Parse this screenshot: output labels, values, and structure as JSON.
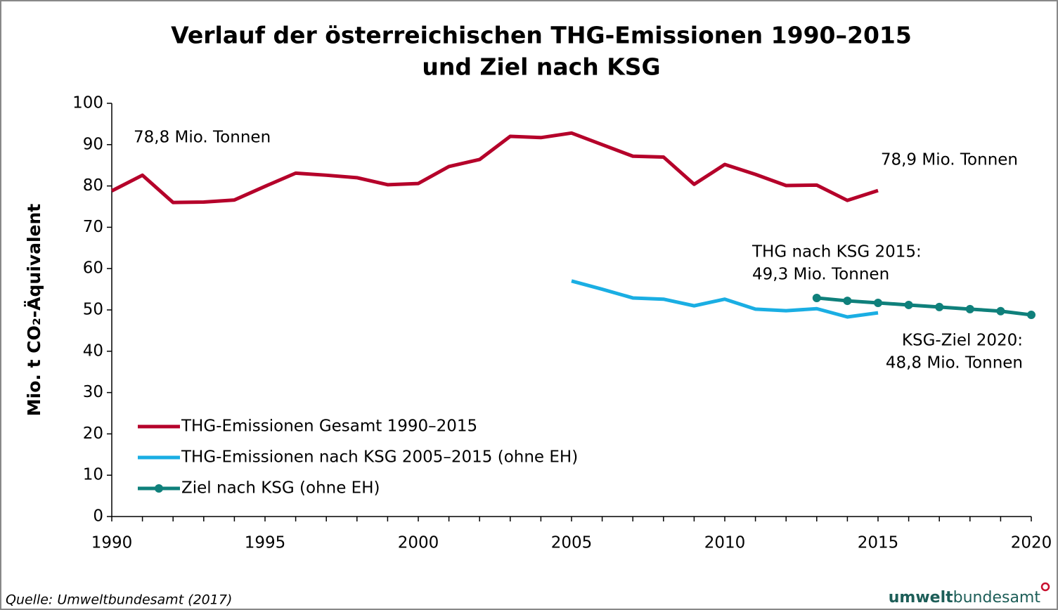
{
  "chart_data": {
    "type": "line",
    "title": [
      "Verlauf der österreichischen THG-Emissionen 1990–2015",
      "und Ziel nach KSG"
    ],
    "y_label": "Mio. t CO₂-Äquivalent",
    "x": [
      1990,
      1991,
      1992,
      1993,
      1994,
      1995,
      1996,
      1997,
      1998,
      1999,
      2000,
      2001,
      2002,
      2003,
      2004,
      2005,
      2006,
      2007,
      2008,
      2009,
      2010,
      2011,
      2012,
      2013,
      2014,
      2015,
      2016,
      2017,
      2018,
      2019,
      2020
    ],
    "series": [
      {
        "name": "THG-Emissionen Gesamt 1990–2015",
        "color": "#b5002a",
        "markers": false,
        "values": [
          78.8,
          82.6,
          76.0,
          76.1,
          76.6,
          79.9,
          83.1,
          82.6,
          82.0,
          80.3,
          80.6,
          84.7,
          86.4,
          92.0,
          91.7,
          92.8,
          90.0,
          87.2,
          87.0,
          80.4,
          85.2,
          82.8,
          80.1,
          80.2,
          76.5,
          78.9,
          null,
          null,
          null,
          null,
          null
        ]
      },
      {
        "name": "THG-Emissionen nach KSG 2005–2015 (ohne EH)",
        "color": "#1aaee3",
        "markers": false,
        "values": [
          null,
          null,
          null,
          null,
          null,
          null,
          null,
          null,
          null,
          null,
          null,
          null,
          null,
          null,
          null,
          57.0,
          55.0,
          52.9,
          52.6,
          51.0,
          52.6,
          50.2,
          49.8,
          50.3,
          48.3,
          49.3,
          null,
          null,
          null,
          null,
          null
        ]
      },
      {
        "name": "Ziel nach KSG (ohne EH)",
        "color": "#0f807b",
        "markers": true,
        "values": [
          null,
          null,
          null,
          null,
          null,
          null,
          null,
          null,
          null,
          null,
          null,
          null,
          null,
          null,
          null,
          null,
          null,
          null,
          null,
          null,
          null,
          null,
          null,
          52.9,
          52.2,
          51.7,
          51.2,
          50.7,
          50.2,
          49.7,
          48.8
        ]
      }
    ],
    "xlim": [
      1990,
      2020
    ],
    "xticks": [
      1990,
      1995,
      2000,
      2005,
      2010,
      2015,
      2020
    ],
    "ylim": [
      0,
      100
    ],
    "yticks": [
      0,
      10,
      20,
      30,
      40,
      50,
      60,
      70,
      80,
      90,
      100
    ],
    "grid": false,
    "legend": "lower left",
    "annotations": [
      [
        "78,8 Mio. Tonnen"
      ],
      [
        "78,9 Mio. Tonnen"
      ],
      [
        "THG nach KSG 2015:",
        "49,3 Mio. Tonnen"
      ],
      [
        "KSG-Ziel 2020:",
        "48,8 Mio. Tonnen"
      ]
    ],
    "source": "Quelle: Umweltbundesamt (2017)",
    "logo": [
      "umwelt",
      "bundesamt"
    ]
  }
}
